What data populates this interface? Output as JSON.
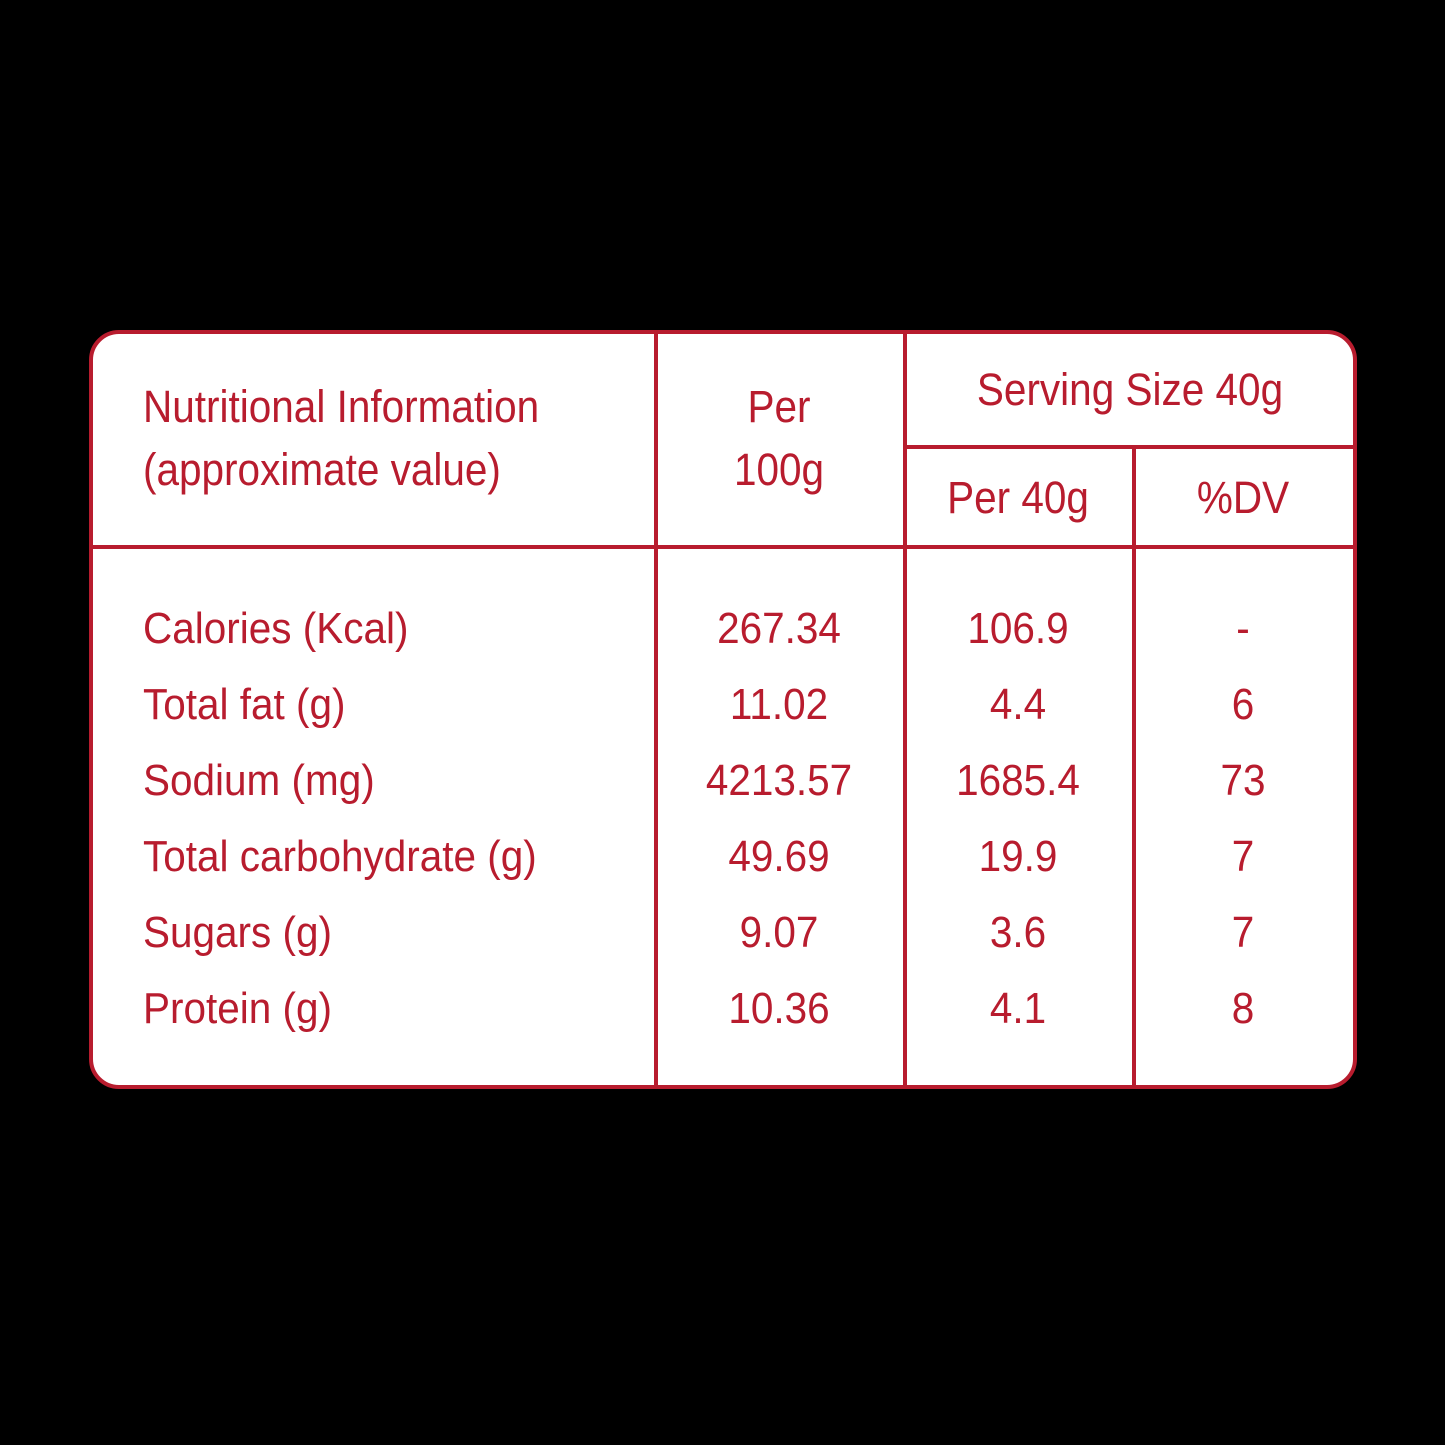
{
  "table": {
    "header": {
      "nutrient_title_line1": "Nutritional Information",
      "nutrient_title_line2": "(approximate value)",
      "per100_line1": "Per",
      "per100_line2": "100g",
      "serving_size": "Serving Size 40g",
      "per40": "Per 40g",
      "dv": "%DV"
    },
    "rows": [
      {
        "name": "Calories (Kcal)",
        "per100g": "267.34",
        "per40g": "106.9",
        "dv": "-"
      },
      {
        "name": "Total fat (g)",
        "per100g": "11.02",
        "per40g": "4.4",
        "dv": "6"
      },
      {
        "name": "Sodium (mg)",
        "per100g": "4213.57",
        "per40g": "1685.4",
        "dv": "73"
      },
      {
        "name": "Total carbohydrate (g)",
        "per100g": "49.69",
        "per40g": "19.9",
        "dv": "7"
      },
      {
        "name": "Sugars (g)",
        "per100g": "9.07",
        "per40g": "3.6",
        "dv": "7"
      },
      {
        "name": "Protein (g)",
        "per100g": "10.36",
        "per40g": "4.1",
        "dv": "8"
      }
    ]
  },
  "colors": {
    "background": "#000000",
    "panel": "#ffffff",
    "accent": "#b81c2e"
  }
}
